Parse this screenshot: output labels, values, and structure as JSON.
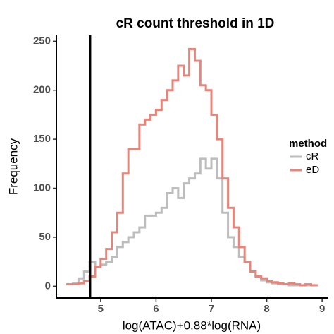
{
  "chart_data": {
    "type": "step-histogram",
    "title": "cR count threshold in 1D",
    "x_label": "log(ATAC)+0.88*log(RNA)",
    "y_label": "Frequency",
    "legend_title": "method",
    "bins": [
      4.4,
      4.5,
      4.6,
      4.7,
      4.8,
      4.9,
      5.0,
      5.1,
      5.2,
      5.3,
      5.4,
      5.5,
      5.6,
      5.7,
      5.8,
      5.9,
      6.0,
      6.1,
      6.2,
      6.3,
      6.4,
      6.5,
      6.6,
      6.7,
      6.8,
      6.9,
      7.0,
      7.1,
      7.2,
      7.3,
      7.4,
      7.5,
      7.6,
      7.7,
      7.8,
      7.9,
      8.0,
      8.1,
      8.2,
      8.3,
      8.4,
      8.5,
      8.6,
      8.7,
      8.8,
      8.9
    ],
    "series": [
      {
        "name": "cR",
        "color": "#bdbdbd",
        "values": [
          2,
          3,
          8,
          15,
          25,
          20,
          22,
          25,
          30,
          40,
          45,
          50,
          55,
          60,
          72,
          72,
          75,
          80,
          95,
          100,
          90,
          105,
          110,
          115,
          130,
          120,
          130,
          110,
          75,
          50,
          40,
          30,
          25,
          15,
          10,
          6,
          4,
          3,
          2,
          2,
          1,
          1,
          1,
          1,
          1
        ]
      },
      {
        "name": "eD",
        "color": "#e8857a",
        "values": [
          2,
          2,
          3,
          5,
          10,
          20,
          28,
          38,
          55,
          75,
          115,
          140,
          140,
          165,
          170,
          175,
          180,
          190,
          200,
          210,
          225,
          215,
          242,
          230,
          205,
          200,
          175,
          150,
          110,
          80,
          60,
          40,
          25,
          15,
          10,
          8,
          5,
          4,
          3,
          2,
          3,
          2,
          1,
          2,
          1
        ]
      }
    ],
    "vline": 4.81,
    "xlim": [
      4.2,
      9.1
    ],
    "xticks": [
      5,
      6,
      7,
      8,
      9
    ],
    "ylim": [
      -12,
      256
    ],
    "yticks": [
      0,
      50,
      100,
      150,
      200,
      250
    ]
  }
}
